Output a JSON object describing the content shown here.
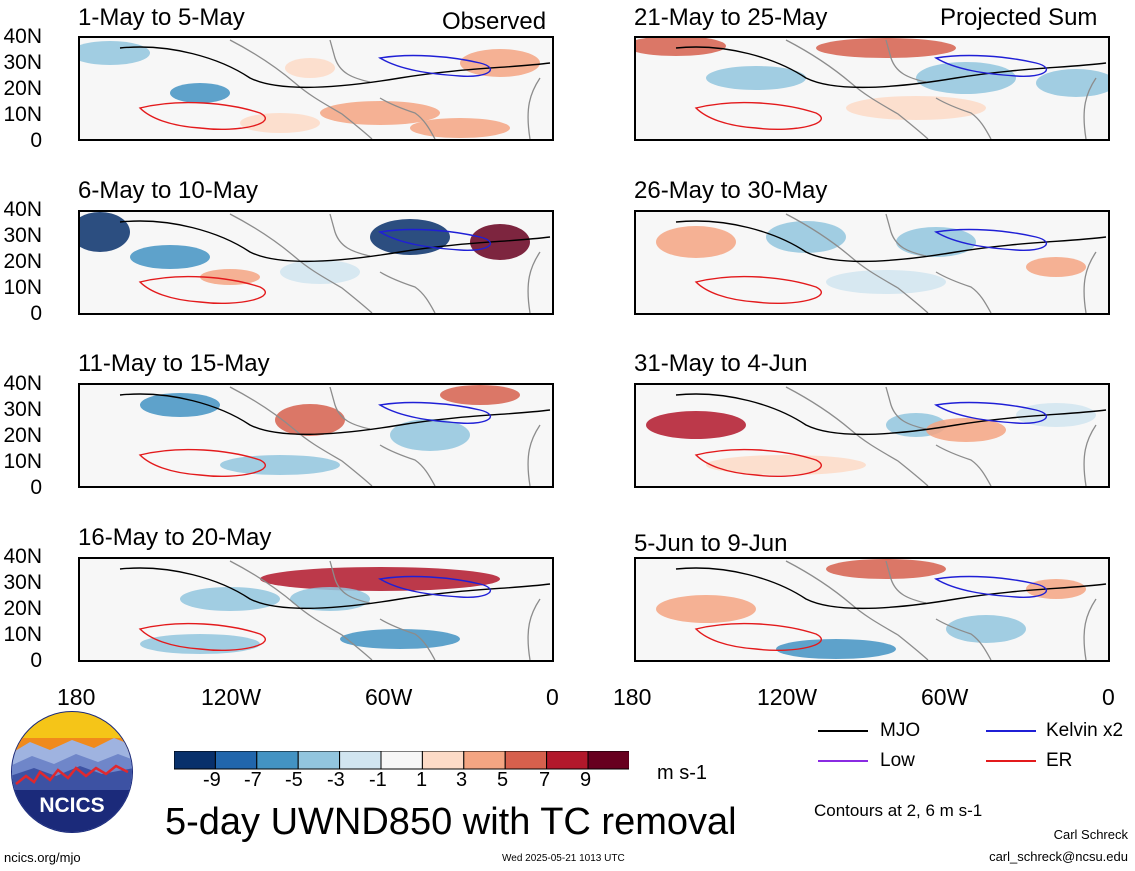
{
  "header": {
    "left_label": "Observed",
    "right_label": "Projected Sum"
  },
  "panels": [
    {
      "title": "1-May to 5-May"
    },
    {
      "title": "21-May to 25-May"
    },
    {
      "title": "6-May to 10-May"
    },
    {
      "title": "26-May to 30-May"
    },
    {
      "title": "11-May to 15-May"
    },
    {
      "title": "31-May to 4-Jun"
    },
    {
      "title": "16-May to 20-May"
    },
    {
      "title": "5-Jun to 9-Jun"
    }
  ],
  "y_axis": {
    "labels": [
      "40N",
      "30N",
      "20N",
      "10N",
      "0"
    ]
  },
  "x_axis": {
    "labels": [
      "180",
      "120W",
      "60W",
      "0"
    ]
  },
  "colorbar": {
    "tick_labels": [
      "-9",
      "-7",
      "-5",
      "-3",
      "-1",
      "1",
      "3",
      "5",
      "7",
      "9"
    ],
    "units": "m s-1",
    "colors": [
      "#08306b",
      "#2166ac",
      "#4393c3",
      "#92c5de",
      "#d1e5f0",
      "#f7f7f7",
      "#fddbc7",
      "#f4a582",
      "#d6604d",
      "#b2182b",
      "#67001f"
    ]
  },
  "legend": {
    "items": [
      {
        "label": "MJO",
        "color": "#000000"
      },
      {
        "label": "Kelvin x2",
        "color": "#1f1fd6"
      },
      {
        "label": "Low",
        "color": "#8a2be2"
      },
      {
        "label": "ER",
        "color": "#e31a1c"
      }
    ],
    "contours_note": "Contours at 2, 6 m s-1"
  },
  "logo": {
    "text": "NCICS"
  },
  "main_title": "5-day UWND850 with TC removal",
  "footer": {
    "url": "ncics.org/mjo",
    "timestamp": "Wed 2025-05-21 1013 UTC",
    "author": "Carl Schreck",
    "email": "carl_schreck@ncsu.edu"
  }
}
